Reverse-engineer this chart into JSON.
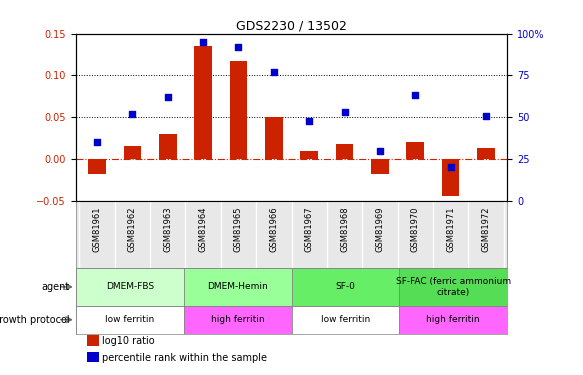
{
  "title": "GDS2230 / 13502",
  "samples": [
    "GSM81961",
    "GSM81962",
    "GSM81963",
    "GSM81964",
    "GSM81965",
    "GSM81966",
    "GSM81967",
    "GSM81968",
    "GSM81969",
    "GSM81970",
    "GSM81971",
    "GSM81972"
  ],
  "log10_ratio": [
    -0.018,
    0.015,
    0.03,
    0.135,
    0.117,
    0.05,
    0.01,
    0.018,
    -0.018,
    0.02,
    -0.045,
    0.013
  ],
  "percentile_rank": [
    35,
    52,
    62,
    95,
    92,
    77,
    48,
    53,
    30,
    63,
    20,
    51
  ],
  "ylim_left": [
    -0.05,
    0.15
  ],
  "ylim_right": [
    0,
    100
  ],
  "yticks_left": [
    -0.05,
    0.0,
    0.05,
    0.1,
    0.15
  ],
  "yticks_right": [
    0,
    25,
    50,
    75,
    100
  ],
  "agent_groups": [
    {
      "label": "DMEM-FBS",
      "start": 0,
      "end": 3,
      "color": "#ccffcc"
    },
    {
      "label": "DMEM-Hemin",
      "start": 3,
      "end": 6,
      "color": "#99ff99"
    },
    {
      "label": "SF-0",
      "start": 6,
      "end": 9,
      "color": "#66ee66"
    },
    {
      "label": "SF-FAC (ferric ammonium\ncitrate)",
      "start": 9,
      "end": 12,
      "color": "#55dd55"
    }
  ],
  "growth_groups": [
    {
      "label": "low ferritin",
      "start": 0,
      "end": 3,
      "color": "#ffffff"
    },
    {
      "label": "high ferritin",
      "start": 3,
      "end": 6,
      "color": "#ff66ff"
    },
    {
      "label": "low ferritin",
      "start": 6,
      "end": 9,
      "color": "#ffffff"
    },
    {
      "label": "high ferritin",
      "start": 9,
      "end": 12,
      "color": "#ff66ff"
    }
  ],
  "bar_color": "#cc2200",
  "dot_color": "#0000cc",
  "hline_color": "#cc2200",
  "dot_size": 25,
  "bar_width": 0.5,
  "legend_bar_color": "#cc2200",
  "legend_dot_color": "#0000cc"
}
